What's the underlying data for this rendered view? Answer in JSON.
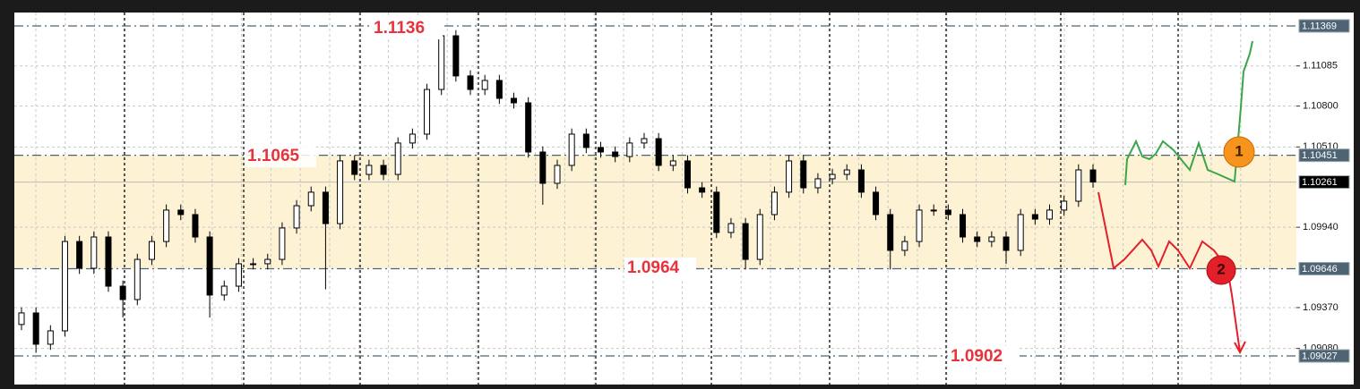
{
  "chart_data": {
    "type": "candlestick",
    "ylim": [
      1.08824,
      1.11464
    ],
    "yticks": [
      1.11085,
      {
        "value": 1.108,
        "label": "1.10800"
      },
      {
        "value": 1.1051,
        "label": "1.10510"
      },
      {
        "value": 1.0994,
        "label": "1.09940"
      },
      {
        "value": 1.0937,
        "label": "1.09370"
      },
      {
        "value": 1.0908,
        "label": "1.09080"
      }
    ],
    "grid": true,
    "up_color": "#ffffff",
    "down_color": "#000000",
    "open": [
      1.0925,
      1.09332,
      1.0911,
      1.09205,
      1.09839,
      1.09649,
      1.09871,
      1.09522,
      1.09427,
      1.09712,
      1.09839,
      1.10062,
      1.1003,
      1.09871,
      1.09459,
      1.09522,
      1.09681,
      1.09681,
      1.09712,
      1.09935,
      1.10093,
      1.10189,
      1.09966,
      1.10411,
      1.10315,
      1.10379,
      1.10315,
      1.10538,
      1.10601,
      1.10918,
      1.11299,
      1.11014,
      1.10918,
      1.10982,
      1.10855,
      1.10823,
      1.10474,
      1.10252,
      1.10379,
      1.10601,
      1.10506,
      1.10474,
      1.10442,
      1.10538,
      1.10569,
      1.10379,
      1.10411,
      1.1022,
      1.10189,
      1.09903,
      1.09966,
      1.09712,
      1.1003,
      1.10189,
      1.10411,
      1.1022,
      1.10284,
      1.10315,
      1.10347,
      1.10189,
      1.1003,
      1.09776,
      1.09839,
      1.10062,
      1.10062,
      1.1003,
      1.09871,
      1.09839,
      1.09871,
      1.09776,
      1.1003,
      1.09998,
      1.10062,
      1.10125,
      1.10347
    ],
    "high": [
      1.09372,
      1.09372,
      1.09245,
      1.09879,
      1.09879,
      1.09911,
      1.09911,
      1.09562,
      1.09752,
      1.09879,
      1.10102,
      1.10102,
      1.1007,
      1.09911,
      1.09562,
      1.09721,
      1.09721,
      1.09752,
      1.09975,
      1.10133,
      1.10229,
      1.10229,
      1.10451,
      1.10451,
      1.10419,
      1.10419,
      1.10578,
      1.10641,
      1.10958,
      1.1136,
      1.11339,
      1.11054,
      1.11022,
      1.11022,
      1.10895,
      1.10863,
      1.10514,
      1.10419,
      1.10641,
      1.10641,
      1.10546,
      1.10514,
      1.10578,
      1.10609,
      1.10609,
      1.10451,
      1.10451,
      1.1026,
      1.10229,
      1.10006,
      1.10006,
      1.1007,
      1.10229,
      1.10451,
      1.10451,
      1.10324,
      1.10355,
      1.10387,
      1.10387,
      1.10229,
      1.1007,
      1.09879,
      1.10102,
      1.10102,
      1.10102,
      1.1007,
      1.09911,
      1.09911,
      1.09911,
      1.1007,
      1.1007,
      1.10102,
      1.10165,
      1.10387,
      1.10387
    ],
    "low": [
      1.0921,
      1.0905,
      1.0907,
      1.09165,
      1.09609,
      1.09609,
      1.09482,
      1.093,
      1.09387,
      1.09672,
      1.09799,
      1.0999,
      1.09831,
      1.093,
      1.09419,
      1.09482,
      1.09641,
      1.09641,
      1.09672,
      1.09895,
      1.10053,
      1.095,
      1.09926,
      1.10275,
      1.10275,
      1.10275,
      1.10275,
      1.10498,
      1.10561,
      1.10878,
      1.10974,
      1.10878,
      1.10878,
      1.10815,
      1.10783,
      1.10434,
      1.101,
      1.10212,
      1.10339,
      1.10466,
      1.10434,
      1.10402,
      1.10402,
      1.10498,
      1.10339,
      1.10339,
      1.1018,
      1.10149,
      1.09863,
      1.09863,
      1.0964,
      1.09672,
      1.0999,
      1.10149,
      1.1018,
      1.1018,
      1.10244,
      1.10275,
      1.10149,
      1.0999,
      1.0964,
      1.09736,
      1.09799,
      1.10022,
      1.0999,
      1.09831,
      1.09799,
      1.09799,
      1.0968,
      1.09736,
      1.09958,
      1.09958,
      1.10022,
      1.10085,
      1.10221
    ],
    "close": [
      1.09332,
      1.0911,
      1.09205,
      1.09839,
      1.09649,
      1.09871,
      1.09522,
      1.09427,
      1.09712,
      1.09839,
      1.10062,
      1.1003,
      1.09871,
      1.09459,
      1.09522,
      1.09681,
      1.09681,
      1.09712,
      1.09935,
      1.10093,
      1.10189,
      1.09966,
      1.10411,
      1.10315,
      1.10379,
      1.10315,
      1.10538,
      1.10601,
      1.10918,
      1.11299,
      1.11014,
      1.10918,
      1.10982,
      1.10855,
      1.10823,
      1.10474,
      1.10252,
      1.10379,
      1.10601,
      1.10506,
      1.10474,
      1.10442,
      1.10538,
      1.10569,
      1.10379,
      1.10411,
      1.1022,
      1.10189,
      1.09903,
      1.09966,
      1.09712,
      1.1003,
      1.10189,
      1.10411,
      1.1022,
      1.10284,
      1.10315,
      1.10347,
      1.10189,
      1.1003,
      1.09776,
      1.09839,
      1.10062,
      1.10062,
      1.1003,
      1.09871,
      1.09839,
      1.09871,
      1.09776,
      1.1003,
      1.09998,
      1.10062,
      1.10125,
      1.10347,
      1.10261
    ],
    "zone": {
      "from": 1.09646,
      "to": 1.10451,
      "color": "#fdf3d4"
    },
    "levels": [
      {
        "value": 1.11369,
        "label": "1.11369",
        "color": "#4e6475"
      },
      {
        "value": 1.10451,
        "label": "1.10451",
        "color": "#4e6475"
      },
      {
        "value": 1.10261,
        "label": "1.10261",
        "color": "#000000"
      },
      {
        "value": 1.09646,
        "label": "1.09646",
        "color": "#4e6475"
      },
      {
        "value": 1.09027,
        "label": "1.09027",
        "color": "#4e6475"
      }
    ],
    "annotations": [
      "1.1136",
      "1.1065",
      "1.0964",
      "1.0902"
    ],
    "markers": [
      "1",
      "2"
    ]
  }
}
